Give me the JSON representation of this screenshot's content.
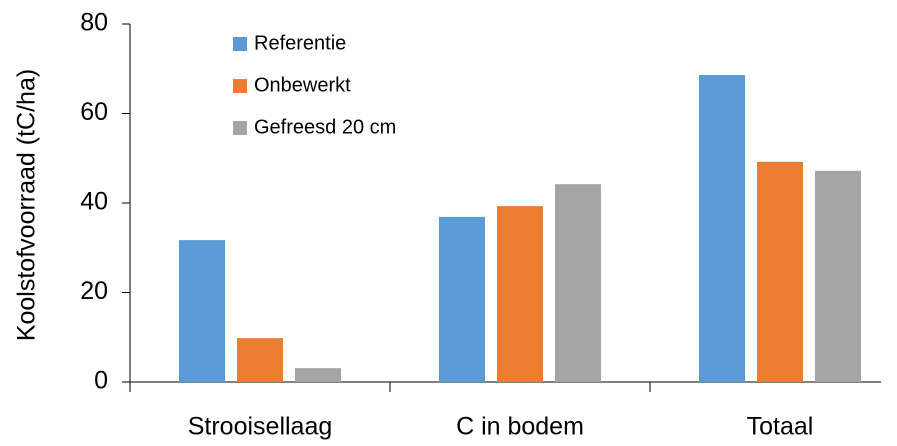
{
  "chart_data": {
    "type": "bar",
    "y_label": "Koolstofvoorraad (tC/ha)",
    "categories": [
      "Strooisellaag",
      "C in bodem",
      "Totaal"
    ],
    "series": [
      {
        "name": "Referentie",
        "color": "#5b9bd5",
        "values": [
          31.7,
          36.9,
          68.6
        ]
      },
      {
        "name": "Onbewerkt",
        "color": "#ed7d31",
        "values": [
          9.8,
          39.3,
          49.2
        ]
      },
      {
        "name": "Gefreesd 20 cm",
        "color": "#a5a5a5",
        "values": [
          3.1,
          44.2,
          47.2
        ]
      }
    ],
    "ylim": [
      0,
      80
    ],
    "yticks": [
      0,
      20,
      40,
      60,
      80
    ],
    "grid": false
  }
}
